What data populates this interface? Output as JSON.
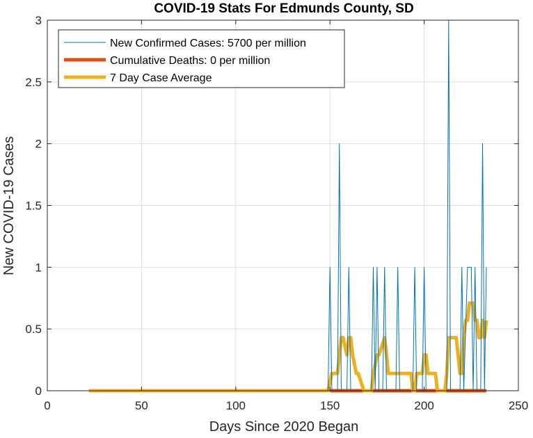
{
  "chart_data": {
    "type": "line",
    "title": "COVID-19 Stats For Edmunds County, SD",
    "xlabel": "Days Since 2020 Began",
    "ylabel": "New COVID-19 Cases",
    "xlim": [
      0,
      250
    ],
    "ylim": [
      0,
      3
    ],
    "xticks": [
      0,
      50,
      100,
      150,
      200,
      250
    ],
    "yticks": [
      0,
      0.5,
      1,
      1.5,
      2,
      2.5,
      3
    ],
    "xtick_labels": [
      "0",
      "50",
      "100",
      "150",
      "200",
      "250"
    ],
    "ytick_labels": [
      "0",
      "0.5",
      "1",
      "1.5",
      "2",
      "2.5",
      "3"
    ],
    "grid": true,
    "legend_position": "top-left",
    "series": [
      {
        "name": "New Confirmed Cases: 5700 per million",
        "color": "#0072BD",
        "x": [
          22,
          149,
          150,
          151,
          154,
          155,
          156,
          159,
          160,
          161,
          172,
          173,
          174,
          175,
          176,
          178,
          179,
          180,
          185,
          186,
          187,
          194,
          195,
          196,
          199,
          200,
          201,
          212,
          213,
          214,
          219,
          220,
          221,
          223,
          224,
          225,
          226,
          227,
          228,
          230,
          231,
          232,
          233
        ],
        "y": [
          0,
          0,
          1,
          0,
          0,
          2,
          0,
          0,
          1,
          0,
          0,
          1,
          0,
          1,
          0,
          0,
          1,
          0,
          0,
          1,
          0,
          0,
          1,
          0,
          0,
          1,
          0,
          0,
          3,
          0,
          0,
          1,
          0,
          1,
          1,
          1,
          0,
          1,
          0,
          0,
          2,
          0,
          1
        ]
      },
      {
        "name": "Cumulative Deaths: 0 per million",
        "color": "#D95319",
        "x": [
          150,
          233
        ],
        "y": [
          0,
          0
        ]
      },
      {
        "name": "7 Day Case Average",
        "color": "#EDB120",
        "x": [
          22,
          149,
          151,
          154,
          155,
          156,
          157,
          159,
          160,
          161,
          162,
          164,
          165,
          168,
          172,
          173,
          175,
          176,
          179,
          180,
          181,
          182,
          186,
          187,
          188,
          193,
          194,
          195,
          196,
          199,
          200,
          201,
          202,
          206,
          207,
          208,
          211,
          212,
          213,
          216,
          217,
          218,
          219,
          220,
          221,
          222,
          223,
          224,
          225,
          226,
          227,
          228,
          229,
          230,
          231,
          232,
          233
        ],
        "y": [
          0,
          0,
          0.14,
          0.14,
          0.29,
          0.43,
          0.43,
          0.29,
          0.43,
          0.43,
          0.29,
          0.14,
          0.14,
          0,
          0,
          0.14,
          0.29,
          0.29,
          0.43,
          0.29,
          0.14,
          0.14,
          0.14,
          0.14,
          0.14,
          0.14,
          0,
          0,
          0.14,
          0.14,
          0.29,
          0.29,
          0.14,
          0.14,
          0,
          0,
          0,
          0.14,
          0.43,
          0.43,
          0.43,
          0.29,
          0.14,
          0.14,
          0.43,
          0.57,
          0.57,
          0.71,
          0.71,
          0.71,
          0.57,
          0.57,
          0.43,
          0.43,
          0.57,
          0.43,
          0.57
        ]
      }
    ]
  }
}
